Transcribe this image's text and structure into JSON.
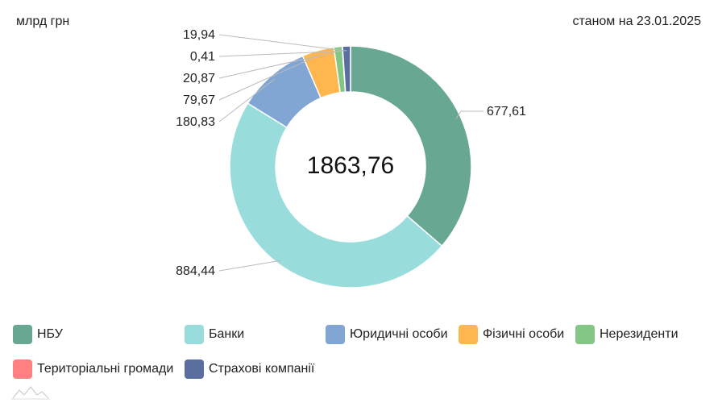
{
  "header": {
    "unit": "млрд грн",
    "date": "станом на 23.01.2025"
  },
  "chart_data": {
    "type": "pie",
    "donut": true,
    "total_label": "1863,76",
    "slices": [
      {
        "label": "НБУ",
        "value": 677.61,
        "display": "677,61",
        "color": "#68a893"
      },
      {
        "label": "Банки",
        "value": 884.44,
        "display": "884,44",
        "color": "#99dcdc"
      },
      {
        "label": "Юридичні особи",
        "value": 180.83,
        "display": "180,83",
        "color": "#82a6d4"
      },
      {
        "label": "Фізичні особи",
        "value": 79.67,
        "display": "79,67",
        "color": "#ffb64e"
      },
      {
        "label": "Нерезиденти",
        "value": 20.87,
        "display": "20,87",
        "color": "#82c785"
      },
      {
        "label": "Територіальні громади",
        "value": 0.41,
        "display": "0,41",
        "color": "#ff8080"
      },
      {
        "label": "Страхові компанії",
        "value": 19.94,
        "display": "19,94",
        "color": "#5a6fa0"
      }
    ],
    "legend_position": "bottom"
  }
}
